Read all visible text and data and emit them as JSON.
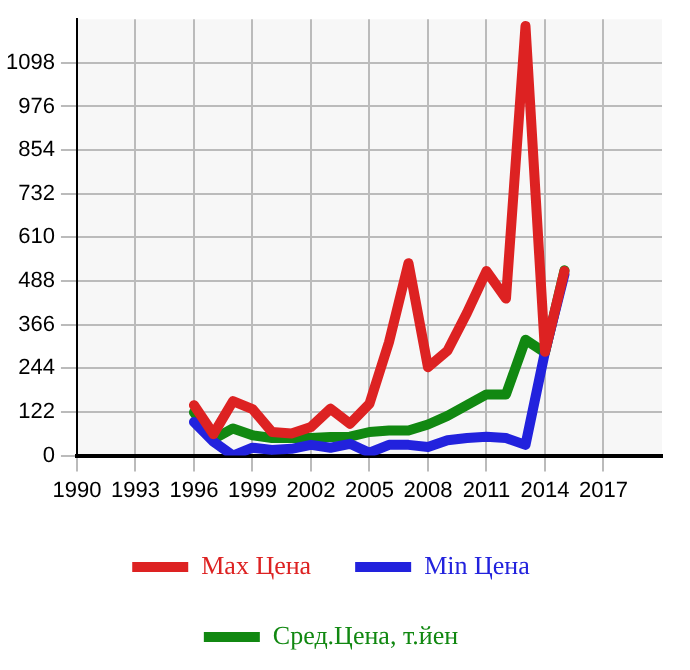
{
  "chart_data": {
    "type": "line",
    "x": [
      1996,
      1997,
      1998,
      1999,
      2000,
      2001,
      2002,
      2003,
      2004,
      2005,
      2006,
      2007,
      2008,
      2009,
      2010,
      2011,
      2012,
      2013,
      2014,
      2015
    ],
    "series": [
      {
        "name": "Max Цена",
        "color": "#dd2222",
        "values": [
          141,
          60,
          152,
          130,
          66,
          62,
          80,
          131,
          89,
          145,
          317,
          538,
          247,
          293,
          399,
          516,
          439,
          1201,
          290,
          516
        ]
      },
      {
        "name": "Min Цена",
        "color": "#2222dd",
        "values": [
          94,
          39,
          0,
          22,
          16,
          19,
          30,
          22,
          33,
          8,
          30,
          30,
          24,
          43,
          49,
          53,
          49,
          30,
          290,
          507
        ]
      },
      {
        "name": "Сред.Цена, т.йен",
        "color": "#118811",
        "values": [
          121,
          46,
          76,
          57,
          49,
          49,
          49,
          52,
          53,
          66,
          70,
          70,
          87,
          111,
          141,
          171,
          171,
          324,
          288,
          518
        ]
      }
    ],
    "xlim": [
      1990,
      2020
    ],
    "xticks": [
      1990,
      1993,
      1996,
      1999,
      2002,
      2005,
      2008,
      2011,
      2014,
      2017
    ],
    "ylim": [
      0,
      1220
    ],
    "yticks": [
      0,
      122,
      244,
      366,
      488,
      610,
      732,
      854,
      976,
      1098
    ],
    "grid": true,
    "legend": "bottom",
    "marker": "none",
    "line_style": "solid"
  }
}
